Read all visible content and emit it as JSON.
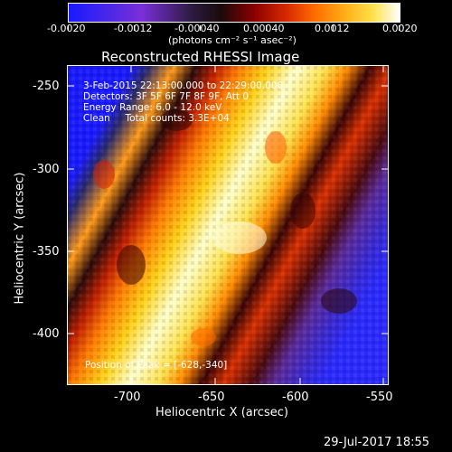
{
  "colorbar": {
    "ticks": [
      "-0.0020",
      "-0.0012",
      "-0.00040",
      "0.00040",
      "0.0012",
      "0.0020"
    ],
    "unit": "(photons cm⁻² s⁻¹ asec⁻²)",
    "colors": [
      "#1a1aff",
      "#7a2fd8",
      "#1a1a1a",
      "#8b0000",
      "#ff6a00",
      "#ffe14d",
      "#ffffff"
    ]
  },
  "title": "Reconstructed RHESSI Image",
  "overlay": {
    "line1": "3-Feb-2015 22:13:00.000 to 22:29:00.000",
    "line2": "Detectors: 3F 5F 6F 7F 8F 9F, Att 0",
    "line3": "Energy Range: 6.0 - 12.0 keV",
    "line4": "Clean     Total counts: 3.3E+04",
    "peak": "Position of Peak = [-628,-340]"
  },
  "axes": {
    "x_title": "Heliocentric X (arcsec)",
    "y_title": "Heliocentric Y (arcsec)",
    "x_ticks": [
      "-700",
      "-650",
      "-600",
      "-550"
    ],
    "y_ticks": [
      "-250",
      "-300",
      "-350",
      "-400"
    ],
    "x_range": [
      -735,
      -545
    ],
    "y_range": [
      -430,
      -235
    ]
  },
  "footer": {
    "date": "29-Jul-2017 18:55"
  }
}
